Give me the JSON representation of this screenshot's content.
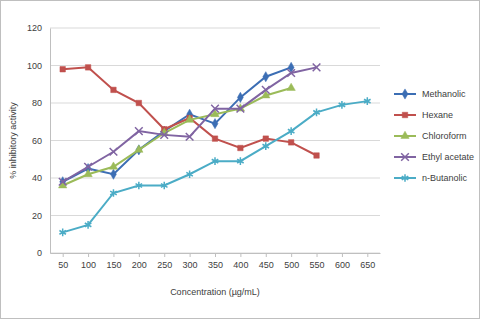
{
  "chart_data": {
    "type": "line",
    "x_label": "Concentration (µg/mL)",
    "y_label": "% inhibitory activity",
    "x": [
      50,
      100,
      150,
      200,
      250,
      300,
      350,
      400,
      450,
      500,
      550,
      600,
      650
    ],
    "xlim": [
      25,
      675
    ],
    "xticks": [
      50,
      100,
      150,
      200,
      250,
      300,
      350,
      400,
      450,
      500,
      550,
      600,
      650
    ],
    "ylim": [
      0,
      120
    ],
    "yticks": [
      0,
      20,
      40,
      60,
      80,
      100,
      120
    ],
    "grid": true,
    "legend": "right",
    "series": [
      {
        "name": "Methanolic",
        "color": "#3c6eb4",
        "marker": "diamond",
        "values": [
          38,
          45,
          42,
          55,
          65,
          74,
          69,
          83,
          94,
          99,
          null,
          null,
          null
        ]
      },
      {
        "name": "Hexane",
        "color": "#c0504d",
        "marker": "square",
        "values": [
          98,
          99,
          87,
          80,
          66,
          72,
          61,
          56,
          61,
          59,
          52,
          null,
          null
        ]
      },
      {
        "name": "Chloroform",
        "color": "#9bbb59",
        "marker": "triangle",
        "values": [
          36,
          42,
          46,
          55,
          64,
          71,
          74,
          77,
          84,
          88,
          null,
          null,
          null
        ]
      },
      {
        "name": "Ethyl acetate",
        "color": "#8064a2",
        "marker": "x",
        "values": [
          38,
          46,
          54,
          65,
          63,
          62,
          77,
          77,
          87,
          96,
          99,
          null,
          null
        ]
      },
      {
        "name": "n-Butanolic",
        "color": "#4bacc6",
        "marker": "star",
        "values": [
          11,
          15,
          32,
          36,
          36,
          42,
          49,
          49,
          57,
          65,
          75,
          79,
          81
        ]
      }
    ]
  }
}
